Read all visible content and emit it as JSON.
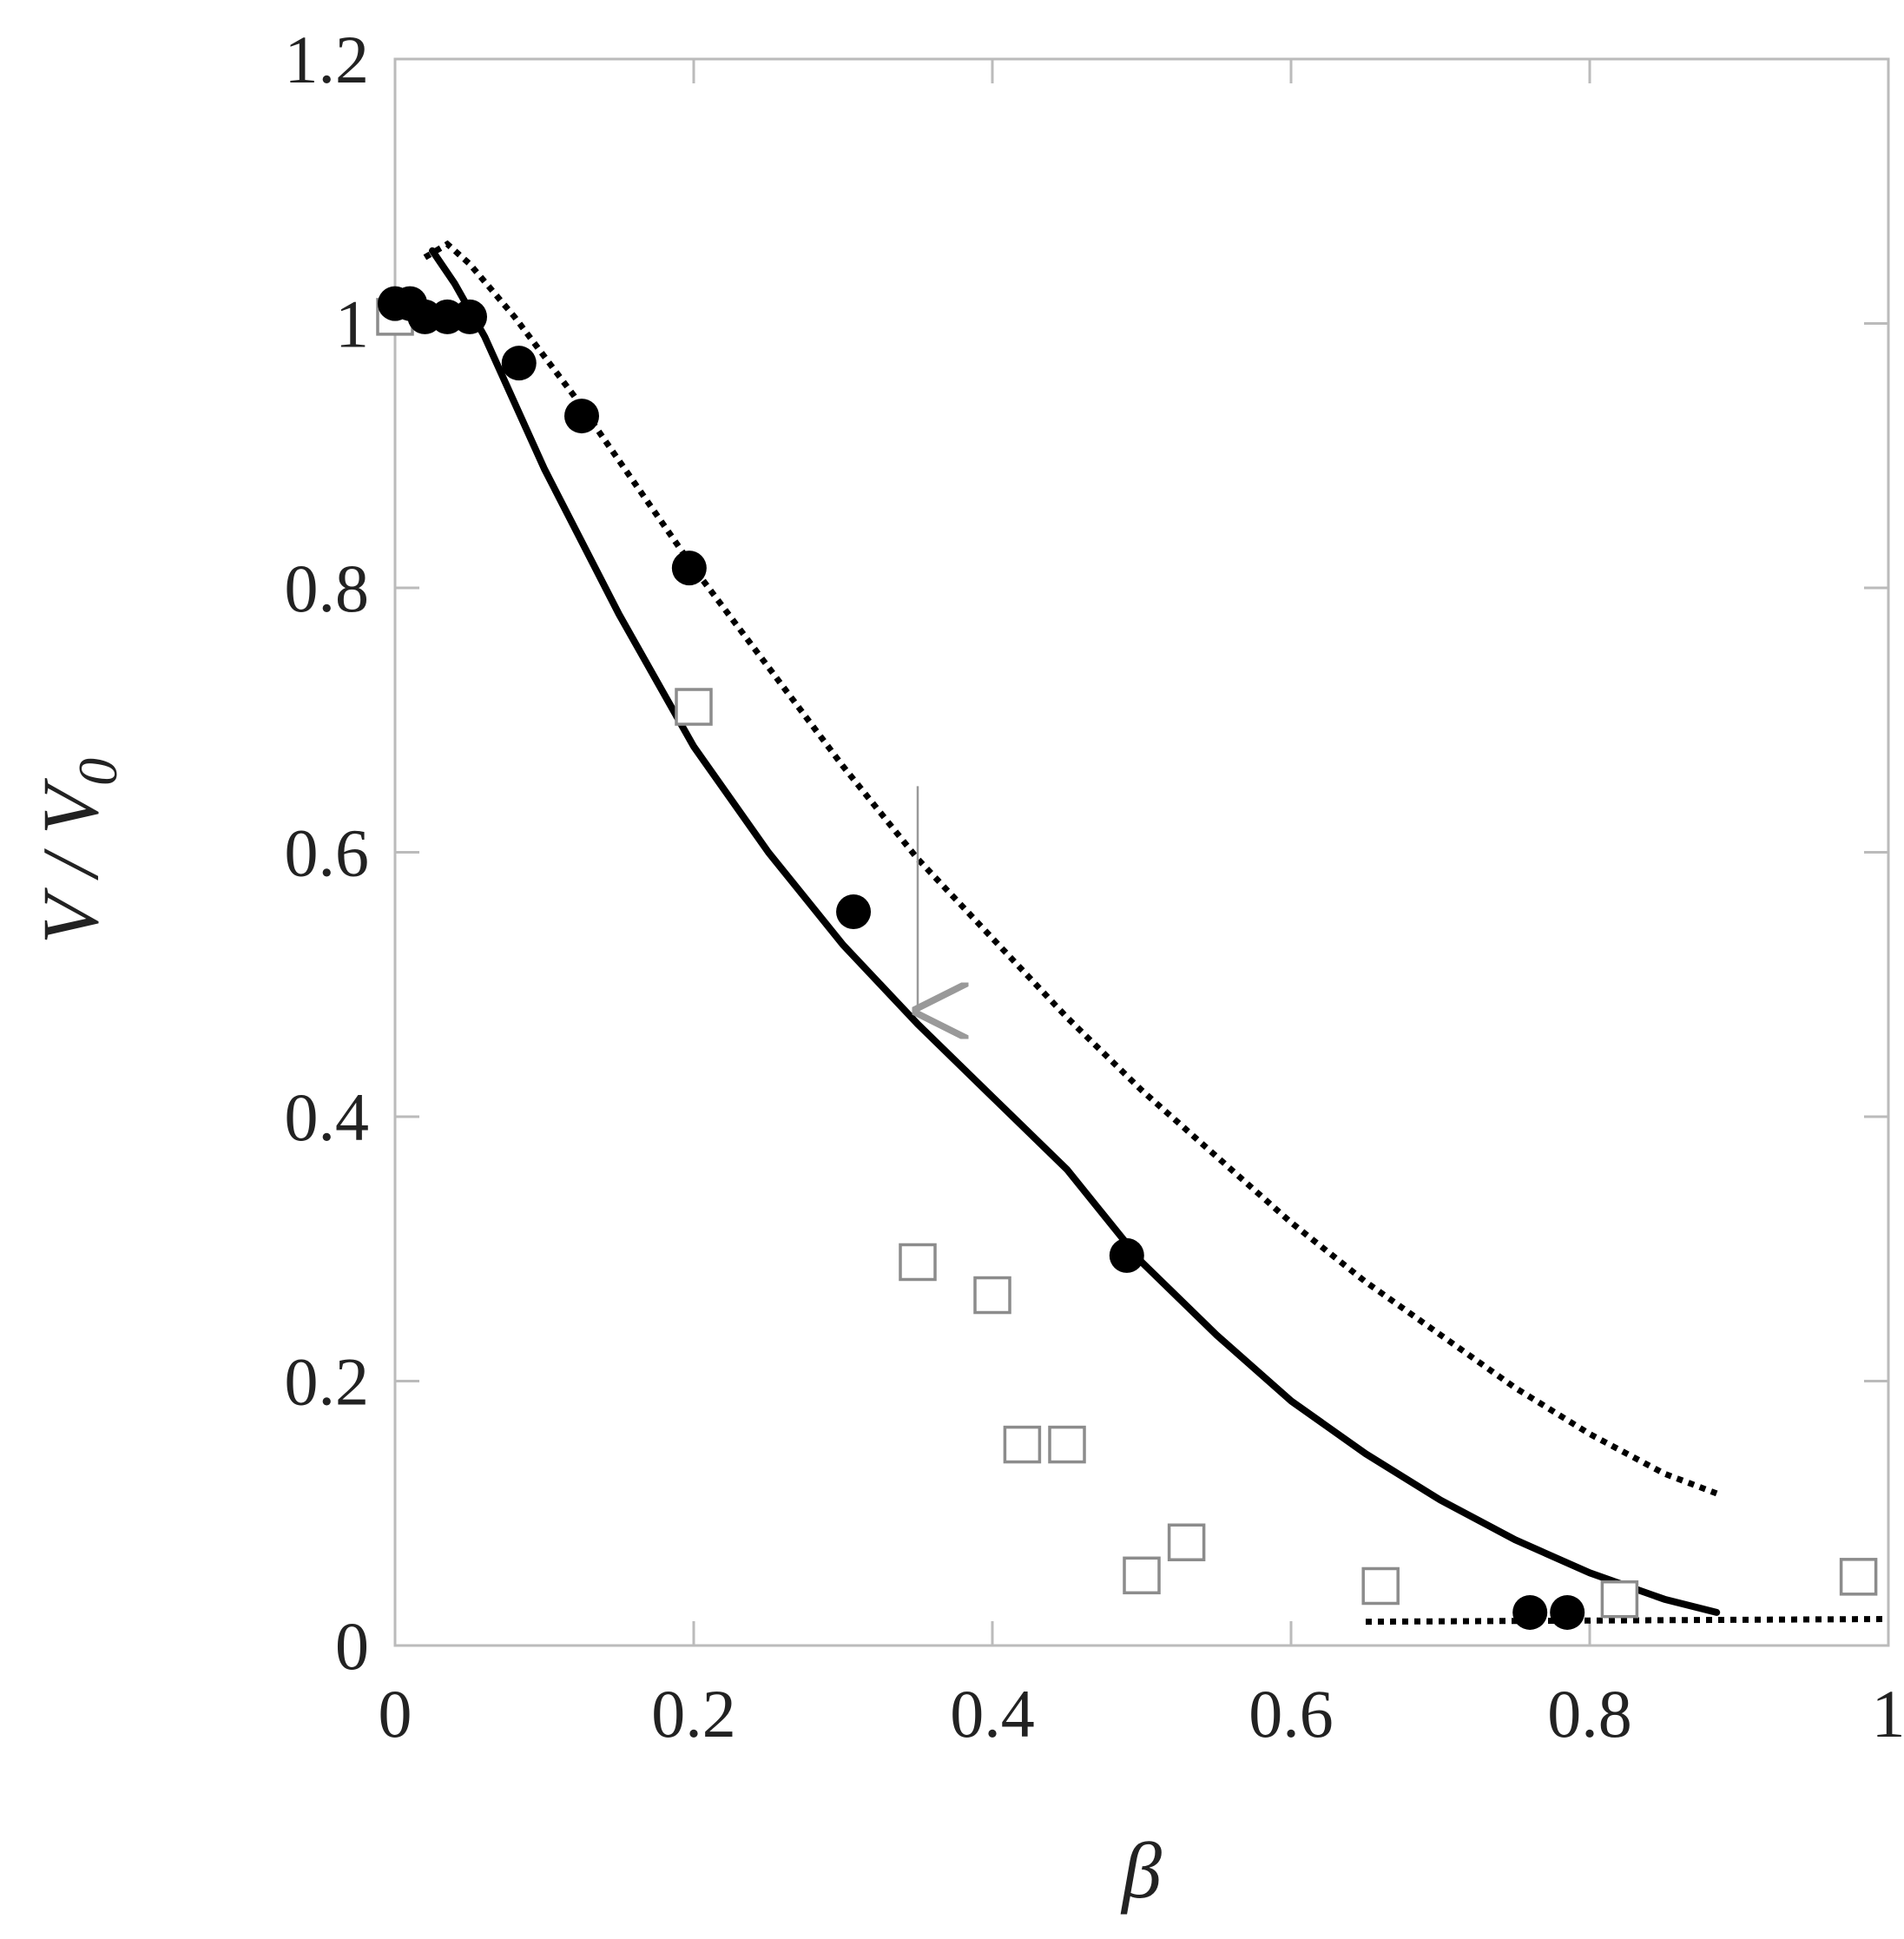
{
  "chart_data": {
    "type": "scatter",
    "title": "",
    "xlabel": "β",
    "ylabel": {
      "main": "V / V",
      "sub": "0"
    },
    "xlim": [
      0,
      1
    ],
    "ylim": [
      0,
      1.2
    ],
    "x_ticks": [
      0,
      0.2,
      0.4,
      0.6,
      0.8,
      1
    ],
    "y_ticks": [
      0,
      0.2,
      0.4,
      0.6,
      0.8,
      1,
      1.2
    ],
    "x_tick_labels": [
      "0",
      "0.2",
      "0.4",
      "0.6",
      "0.8",
      "1"
    ],
    "y_tick_labels": [
      "0",
      "0.2",
      "0.4",
      "0.6",
      "0.8",
      "1",
      "1.2"
    ],
    "grid": false,
    "legend": "none",
    "colors": {
      "lines": "#000000",
      "open_squares": "#8c8c8c",
      "arrow": "#999999",
      "frame": "#bbbbbb"
    },
    "series": [
      {
        "kind": "scatter-filled-circle",
        "points": [
          [
            0.0,
            1.015
          ],
          [
            0.01,
            1.015
          ],
          [
            0.02,
            1.005
          ],
          [
            0.035,
            1.005
          ],
          [
            0.05,
            1.005
          ],
          [
            0.083,
            0.97
          ],
          [
            0.125,
            0.93
          ],
          [
            0.197,
            0.815
          ],
          [
            0.307,
            0.555
          ],
          [
            0.49,
            0.295
          ],
          [
            0.76,
            0.025
          ],
          [
            0.785,
            0.025
          ]
        ]
      },
      {
        "kind": "scatter-open-square",
        "points": [
          [
            0.0,
            1.005
          ],
          [
            0.2,
            0.71
          ],
          [
            0.35,
            0.29
          ],
          [
            0.4,
            0.265
          ],
          [
            0.42,
            0.152
          ],
          [
            0.45,
            0.152
          ],
          [
            0.5,
            0.053
          ],
          [
            0.53,
            0.078
          ],
          [
            0.66,
            0.045
          ],
          [
            0.82,
            0.035
          ],
          [
            0.98,
            0.052
          ]
        ]
      },
      {
        "kind": "line-solid",
        "points": [
          [
            0.025,
            1.055
          ],
          [
            0.04,
            1.03
          ],
          [
            0.06,
            0.99
          ],
          [
            0.1,
            0.89
          ],
          [
            0.15,
            0.78
          ],
          [
            0.2,
            0.68
          ],
          [
            0.25,
            0.6
          ],
          [
            0.3,
            0.53
          ],
          [
            0.35,
            0.47
          ],
          [
            0.4,
            0.415
          ],
          [
            0.45,
            0.36
          ],
          [
            0.5,
            0.29
          ],
          [
            0.55,
            0.235
          ],
          [
            0.6,
            0.185
          ],
          [
            0.65,
            0.145
          ],
          [
            0.7,
            0.11
          ],
          [
            0.75,
            0.08
          ],
          [
            0.8,
            0.055
          ],
          [
            0.85,
            0.035
          ],
          [
            0.885,
            0.025
          ]
        ]
      },
      {
        "kind": "line-dotted",
        "points": [
          [
            0.02,
            1.05
          ],
          [
            0.035,
            1.06
          ],
          [
            0.05,
            1.045
          ],
          [
            0.08,
            1.005
          ],
          [
            0.12,
            0.945
          ],
          [
            0.16,
            0.88
          ],
          [
            0.2,
            0.815
          ],
          [
            0.25,
            0.74
          ],
          [
            0.3,
            0.665
          ],
          [
            0.35,
            0.595
          ],
          [
            0.4,
            0.535
          ],
          [
            0.45,
            0.475
          ],
          [
            0.5,
            0.42
          ],
          [
            0.55,
            0.37
          ],
          [
            0.6,
            0.32
          ],
          [
            0.65,
            0.275
          ],
          [
            0.7,
            0.235
          ],
          [
            0.75,
            0.195
          ],
          [
            0.8,
            0.16
          ],
          [
            0.85,
            0.13
          ],
          [
            0.885,
            0.115
          ]
        ]
      },
      {
        "kind": "line-dotted-baseline",
        "points": [
          [
            0.65,
            0.018
          ],
          [
            1.0,
            0.02
          ]
        ]
      }
    ],
    "annotations": [
      {
        "kind": "arrow",
        "from": [
          0.35,
          0.65
        ],
        "to": [
          0.35,
          0.48
        ]
      }
    ]
  }
}
